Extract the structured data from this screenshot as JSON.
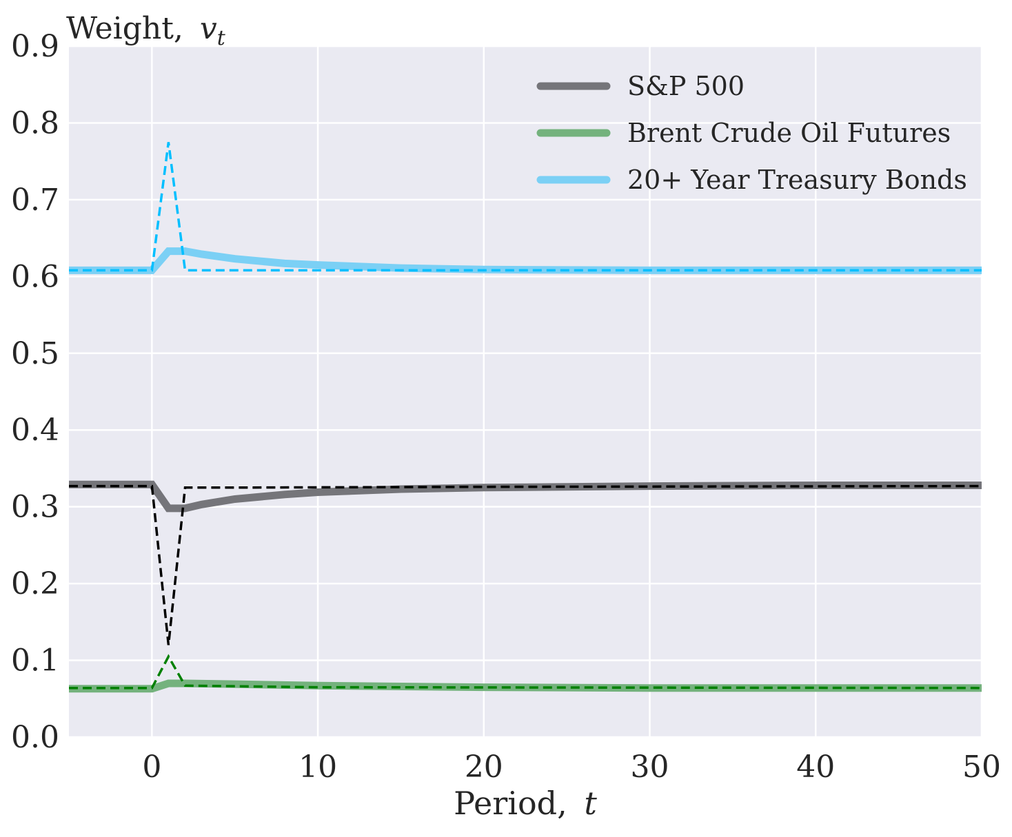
{
  "chart_data": {
    "type": "line",
    "title": "",
    "ylabel": "Weight, v_t",
    "ylabel_main": "Weight,",
    "ylabel_symbol": "v",
    "ylabel_subscript": "t",
    "xlabel": "Period, t",
    "xlabel_main": "Period,",
    "xlabel_symbol": "t",
    "xlim": [
      -5,
      50
    ],
    "ylim": [
      0.0,
      0.9
    ],
    "xticks": [
      0,
      10,
      20,
      30,
      40,
      50
    ],
    "xtick_labels": [
      "0",
      "10",
      "20",
      "30",
      "40",
      "50"
    ],
    "yticks": [
      0.0,
      0.1,
      0.2,
      0.3,
      0.4,
      0.5,
      0.6,
      0.7,
      0.8,
      0.9
    ],
    "ytick_labels": [
      "0.0",
      "0.1",
      "0.2",
      "0.3",
      "0.4",
      "0.5",
      "0.6",
      "0.7",
      "0.8",
      "0.9"
    ],
    "grid": true,
    "background": "#eaeaf2",
    "legend_position": "top-right",
    "series": [
      {
        "name": "S&P 500",
        "color": "#75757a",
        "style": "solid",
        "legend": true,
        "points": [
          [
            -5,
            0.329
          ],
          [
            0,
            0.329
          ],
          [
            1,
            0.298
          ],
          [
            2,
            0.298
          ],
          [
            3,
            0.303
          ],
          [
            5,
            0.31
          ],
          [
            8,
            0.316
          ],
          [
            10,
            0.319
          ],
          [
            15,
            0.323
          ],
          [
            20,
            0.325
          ],
          [
            30,
            0.327
          ],
          [
            40,
            0.328
          ],
          [
            50,
            0.328
          ]
        ]
      },
      {
        "name": "Brent Crude Oil Futures",
        "color": "#74b27d",
        "style": "solid",
        "legend": true,
        "points": [
          [
            -5,
            0.063
          ],
          [
            0,
            0.063
          ],
          [
            1,
            0.07
          ],
          [
            2,
            0.07
          ],
          [
            5,
            0.069
          ],
          [
            10,
            0.067
          ],
          [
            20,
            0.065
          ],
          [
            30,
            0.064
          ],
          [
            40,
            0.064
          ],
          [
            50,
            0.064
          ]
        ]
      },
      {
        "name": "20+ Year Treasury Bonds",
        "color": "#7bd0f5",
        "style": "solid",
        "legend": true,
        "points": [
          [
            -5,
            0.608
          ],
          [
            0,
            0.608
          ],
          [
            1,
            0.633
          ],
          [
            2,
            0.633
          ],
          [
            3,
            0.629
          ],
          [
            5,
            0.623
          ],
          [
            8,
            0.617
          ],
          [
            10,
            0.615
          ],
          [
            15,
            0.611
          ],
          [
            20,
            0.609
          ],
          [
            30,
            0.608
          ],
          [
            50,
            0.608
          ]
        ]
      },
      {
        "color": "#000000",
        "style": "dashed",
        "legend": false,
        "points": [
          [
            -5,
            0.327
          ],
          [
            0,
            0.327
          ],
          [
            1,
            0.12
          ],
          [
            2,
            0.325
          ],
          [
            5,
            0.325
          ],
          [
            20,
            0.326
          ],
          [
            50,
            0.327
          ]
        ]
      },
      {
        "color": "#008000",
        "style": "dashed",
        "legend": false,
        "points": [
          [
            -5,
            0.064
          ],
          [
            0,
            0.064
          ],
          [
            1,
            0.105
          ],
          [
            2,
            0.067
          ],
          [
            10,
            0.065
          ],
          [
            50,
            0.064
          ]
        ]
      },
      {
        "color": "#00bfff",
        "style": "dashed",
        "legend": false,
        "points": [
          [
            -5,
            0.608
          ],
          [
            0,
            0.608
          ],
          [
            1,
            0.775
          ],
          [
            2,
            0.608
          ],
          [
            50,
            0.608
          ]
        ]
      }
    ]
  }
}
